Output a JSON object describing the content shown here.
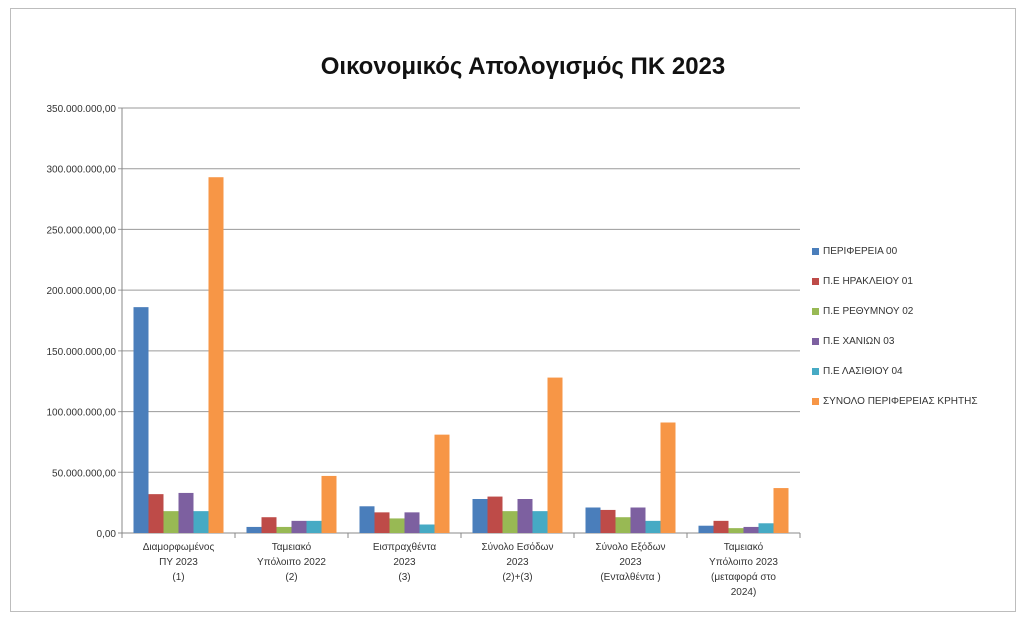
{
  "chart_data": {
    "type": "bar",
    "title": "Οικονομικός Απολογισμός ΠΚ 2023",
    "xlabel": "",
    "ylabel": "",
    "ylim": [
      0,
      350000000
    ],
    "yticks": [
      "0,00",
      "50.000.000,00",
      "100.000.000,00",
      "150.000.000,00",
      "200.000.000,00",
      "250.000.000,00",
      "300.000.000,00",
      "350.000.000,00"
    ],
    "ytick_values": [
      0,
      50000000,
      100000000,
      150000000,
      200000000,
      250000000,
      300000000,
      350000000
    ],
    "grid": true,
    "legend_position": "right",
    "categories": [
      [
        "Διαμορφωμένος",
        "ΠΥ 2023",
        "(1)"
      ],
      [
        "Ταμειακό",
        "Υπόλοιπο 2022",
        "(2)"
      ],
      [
        "Εισπραχθέντα",
        "2023",
        "(3)"
      ],
      [
        "Σύνολο Εσόδων",
        "2023",
        "(2)+(3)"
      ],
      [
        "Σύνολο Εξόδων",
        "2023",
        "(Ενταλθέντα )"
      ],
      [
        "Ταμειακό",
        "Υπόλοιπο 2023",
        "(μεταφορά στο",
        "2024)"
      ]
    ],
    "series": [
      {
        "name": "ΠΕΡΙΦΕΡΕΙΑ 00",
        "color": "#4a7ebb",
        "values": [
          186000000,
          5000000,
          22000000,
          28000000,
          21000000,
          6000000
        ]
      },
      {
        "name": "Π.Ε ΗΡΑΚΛΕΙΟΥ 01",
        "color": "#be4b48",
        "values": [
          32000000,
          13000000,
          17000000,
          30000000,
          19000000,
          10000000
        ]
      },
      {
        "name": "Π.Ε ΡΕΘΥΜΝΟΥ 02",
        "color": "#98b954",
        "values": [
          18000000,
          5000000,
          12000000,
          18000000,
          13000000,
          4000000
        ]
      },
      {
        "name": "Π.Ε ΧΑΝΙΩΝ 03",
        "color": "#7d60a0",
        "values": [
          33000000,
          10000000,
          17000000,
          28000000,
          21000000,
          5000000
        ]
      },
      {
        "name": "Π.Ε ΛΑΣΙΘΙΟΥ 04",
        "color": "#46aac4",
        "values": [
          18000000,
          10000000,
          7000000,
          18000000,
          10000000,
          8000000
        ]
      },
      {
        "name": "ΣΥΝΟΛΟ ΠΕΡΙΦΕΡΕΙΑΣ ΚΡΗΤΗΣ",
        "color": "#f79646",
        "values": [
          293000000,
          47000000,
          81000000,
          128000000,
          91000000,
          37000000
        ]
      }
    ]
  }
}
